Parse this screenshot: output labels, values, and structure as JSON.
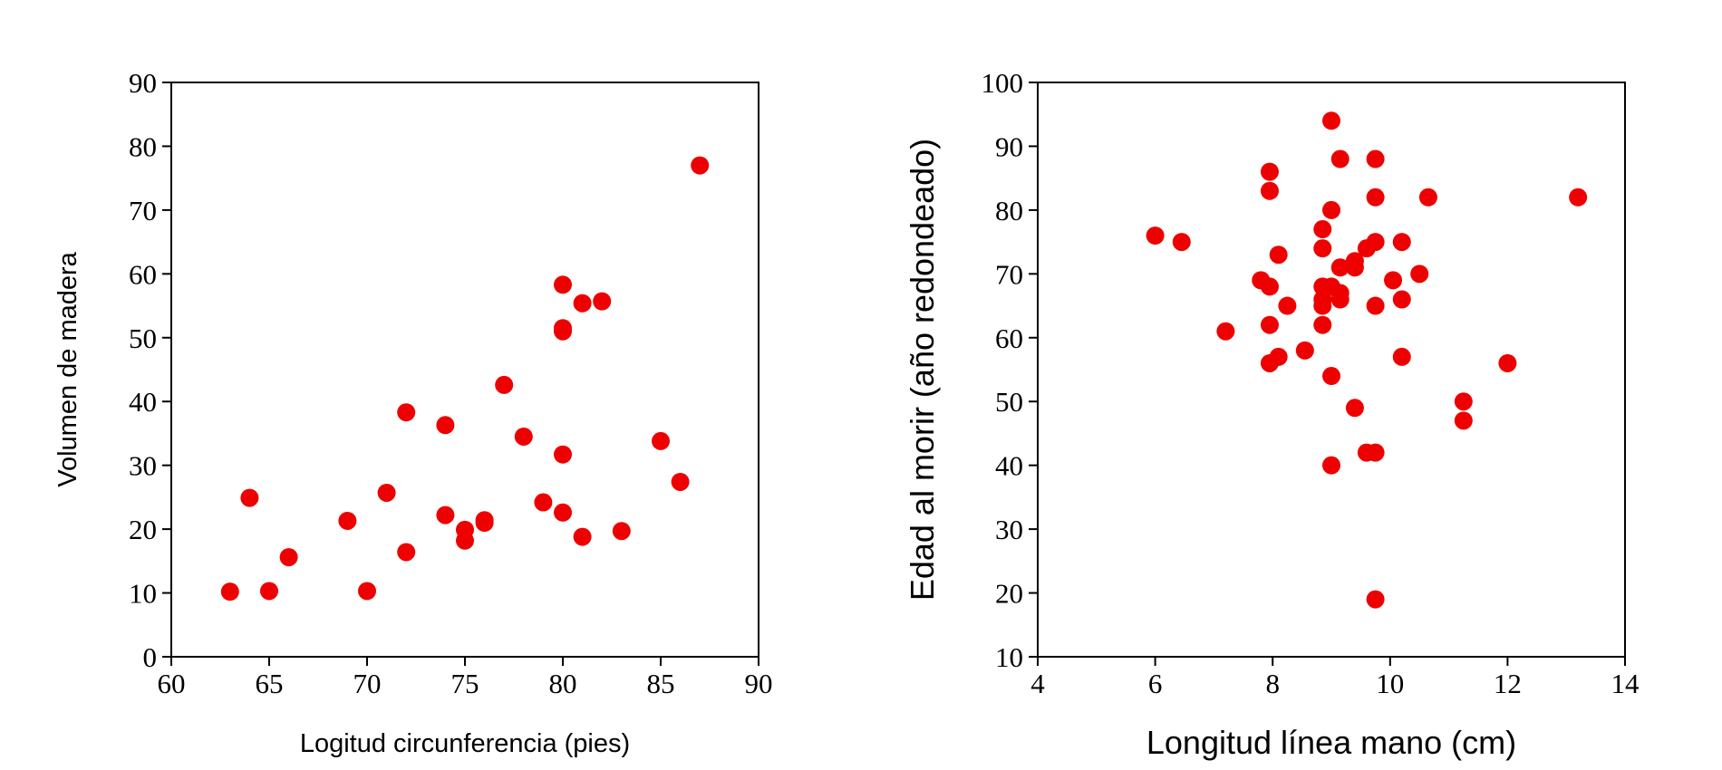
{
  "chart_data": [
    {
      "type": "scatter",
      "title": "",
      "xlabel": "Logitud circunferencia (pies)",
      "ylabel": "Volumen de madera",
      "xlim": [
        60,
        90
      ],
      "ylim": [
        0,
        90
      ],
      "xticks": [
        "60",
        "65",
        "70",
        "75",
        "80",
        "85",
        "90"
      ],
      "yticks": [
        "0",
        "10",
        "20",
        "30",
        "40",
        "50",
        "60",
        "70",
        "80",
        "90"
      ],
      "grid": false,
      "marker_color": "#ee0000",
      "points": [
        {
          "x": 63,
          "y": 10.2
        },
        {
          "x": 64,
          "y": 24.9
        },
        {
          "x": 65,
          "y": 10.3
        },
        {
          "x": 66,
          "y": 15.6
        },
        {
          "x": 69,
          "y": 21.3
        },
        {
          "x": 70,
          "y": 10.3
        },
        {
          "x": 71,
          "y": 25.7
        },
        {
          "x": 72,
          "y": 38.3
        },
        {
          "x": 72,
          "y": 16.4
        },
        {
          "x": 74,
          "y": 36.3
        },
        {
          "x": 74,
          "y": 22.2
        },
        {
          "x": 75,
          "y": 19.9
        },
        {
          "x": 75,
          "y": 18.2
        },
        {
          "x": 76,
          "y": 21.4
        },
        {
          "x": 76,
          "y": 21.0
        },
        {
          "x": 77,
          "y": 42.6
        },
        {
          "x": 78,
          "y": 34.5
        },
        {
          "x": 79,
          "y": 24.2
        },
        {
          "x": 80,
          "y": 58.3
        },
        {
          "x": 80,
          "y": 51.5
        },
        {
          "x": 80,
          "y": 51.0
        },
        {
          "x": 80,
          "y": 31.7
        },
        {
          "x": 80,
          "y": 22.6
        },
        {
          "x": 81,
          "y": 55.4
        },
        {
          "x": 81,
          "y": 18.8
        },
        {
          "x": 82,
          "y": 55.7
        },
        {
          "x": 83,
          "y": 19.7
        },
        {
          "x": 85,
          "y": 33.8
        },
        {
          "x": 86,
          "y": 27.4
        },
        {
          "x": 87,
          "y": 77.0
        }
      ]
    },
    {
      "type": "scatter",
      "title": "",
      "xlabel": "Longitud línea mano (cm)",
      "ylabel": "Edad al morir (año redondeado)",
      "xlim": [
        4,
        14
      ],
      "ylim": [
        10,
        100
      ],
      "xticks": [
        "4",
        "6",
        "8",
        "10",
        "12",
        "14"
      ],
      "yticks": [
        "10",
        "20",
        "30",
        "40",
        "50",
        "60",
        "70",
        "80",
        "90",
        "100"
      ],
      "grid": false,
      "marker_color": "#ee0000",
      "points": [
        {
          "x": 6.0,
          "y": 76
        },
        {
          "x": 6.45,
          "y": 75
        },
        {
          "x": 7.2,
          "y": 61
        },
        {
          "x": 7.8,
          "y": 69
        },
        {
          "x": 7.95,
          "y": 86
        },
        {
          "x": 7.95,
          "y": 83
        },
        {
          "x": 7.95,
          "y": 68
        },
        {
          "x": 7.95,
          "y": 62
        },
        {
          "x": 7.95,
          "y": 56
        },
        {
          "x": 8.1,
          "y": 73
        },
        {
          "x": 8.1,
          "y": 57
        },
        {
          "x": 8.25,
          "y": 65
        },
        {
          "x": 8.55,
          "y": 58
        },
        {
          "x": 8.85,
          "y": 77
        },
        {
          "x": 8.85,
          "y": 74
        },
        {
          "x": 8.85,
          "y": 68
        },
        {
          "x": 8.85,
          "y": 66
        },
        {
          "x": 8.85,
          "y": 65
        },
        {
          "x": 8.85,
          "y": 62
        },
        {
          "x": 9.0,
          "y": 94
        },
        {
          "x": 9.0,
          "y": 80
        },
        {
          "x": 9.0,
          "y": 68
        },
        {
          "x": 9.0,
          "y": 54
        },
        {
          "x": 9.0,
          "y": 40
        },
        {
          "x": 9.15,
          "y": 88
        },
        {
          "x": 9.15,
          "y": 71
        },
        {
          "x": 9.15,
          "y": 67
        },
        {
          "x": 9.15,
          "y": 66
        },
        {
          "x": 9.4,
          "y": 72
        },
        {
          "x": 9.4,
          "y": 71
        },
        {
          "x": 9.4,
          "y": 49
        },
        {
          "x": 9.6,
          "y": 74
        },
        {
          "x": 9.6,
          "y": 42
        },
        {
          "x": 9.75,
          "y": 88
        },
        {
          "x": 9.75,
          "y": 82
        },
        {
          "x": 9.75,
          "y": 75
        },
        {
          "x": 9.75,
          "y": 65
        },
        {
          "x": 9.75,
          "y": 42
        },
        {
          "x": 9.75,
          "y": 19
        },
        {
          "x": 10.05,
          "y": 69
        },
        {
          "x": 10.2,
          "y": 75
        },
        {
          "x": 10.2,
          "y": 66
        },
        {
          "x": 10.2,
          "y": 57
        },
        {
          "x": 10.5,
          "y": 70
        },
        {
          "x": 10.65,
          "y": 82
        },
        {
          "x": 11.25,
          "y": 50
        },
        {
          "x": 11.25,
          "y": 47
        },
        {
          "x": 12.0,
          "y": 56
        },
        {
          "x": 13.2,
          "y": 82
        }
      ]
    }
  ]
}
